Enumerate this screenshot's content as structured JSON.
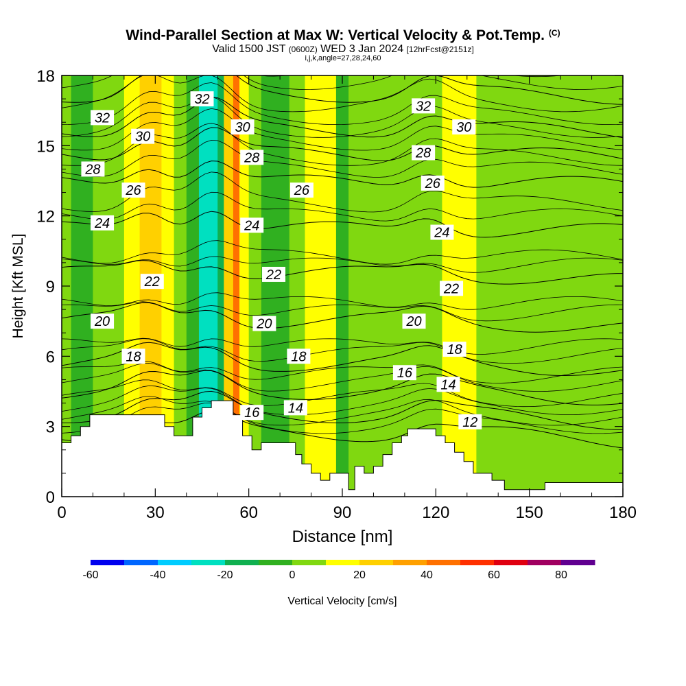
{
  "header": {
    "title": "Wind-Parallel Section at Max W: Vertical Velocity & Pot.Temp.",
    "copyright": "(C)",
    "valid_a": "Valid 1500 JST",
    "valid_z": "(0600Z)",
    "valid_b": "WED 3 Jan 2024",
    "valid_fcst": "[12hrFcst@2151z]",
    "indices": "i,j,k,angle=27,28,24,60"
  },
  "chart_data": {
    "type": "heatmap",
    "title": "Wind-Parallel Section at Max W: Vertical Velocity & Pot.Temp.",
    "xlabel": "Distance [nm]",
    "ylabel": "Height [Kft MSL]",
    "xlim": [
      0,
      180
    ],
    "ylim": [
      0,
      18
    ],
    "xticks": [
      0,
      30,
      60,
      90,
      120,
      150,
      180
    ],
    "yticks": [
      0,
      3,
      6,
      9,
      12,
      15,
      18
    ],
    "grid": false,
    "colorbar": {
      "label": "Vertical Velocity [cm/s]",
      "ticks": [
        -60,
        -40,
        -20,
        0,
        20,
        40,
        60,
        80
      ],
      "bounds": [
        -60,
        90
      ],
      "step": 10,
      "colors": [
        "#0000ee",
        "#0066ff",
        "#00ccff",
        "#00e0c0",
        "#10b050",
        "#30b020",
        "#80d810",
        "#ffff00",
        "#ffd000",
        "#ffa000",
        "#ff7000",
        "#ff3000",
        "#e00010",
        "#a00060",
        "#600090"
      ]
    },
    "velocity_columns": [
      {
        "x": 0,
        "w": 0
      },
      {
        "x": 3,
        "w": 0
      },
      {
        "x": 6,
        "w": -15
      },
      {
        "x": 10,
        "w": -5
      },
      {
        "x": 15,
        "w": 5
      },
      {
        "x": 20,
        "w": 8
      },
      {
        "x": 25,
        "w": 20
      },
      {
        "x": 28,
        "w": 25
      },
      {
        "x": 32,
        "w": 15
      },
      {
        "x": 36,
        "w": 5
      },
      {
        "x": 40,
        "w": -5
      },
      {
        "x": 44,
        "w": -15
      },
      {
        "x": 47,
        "w": -35
      },
      {
        "x": 50,
        "w": -25
      },
      {
        "x": 52,
        "w": -5
      },
      {
        "x": 55,
        "w": 60
      },
      {
        "x": 57,
        "w": 25
      },
      {
        "x": 60,
        "w": 0
      },
      {
        "x": 64,
        "w": 5
      },
      {
        "x": 69,
        "w": -20
      },
      {
        "x": 73,
        "w": 0
      },
      {
        "x": 78,
        "w": 10
      },
      {
        "x": 83,
        "w": 20
      },
      {
        "x": 88,
        "w": 0
      },
      {
        "x": 92,
        "w": -5
      },
      {
        "x": 97,
        "w": 10
      },
      {
        "x": 102,
        "w": 0
      },
      {
        "x": 107,
        "w": 15
      },
      {
        "x": 112,
        "w": -5
      },
      {
        "x": 117,
        "w": 5
      },
      {
        "x": 122,
        "w": -5
      },
      {
        "x": 128,
        "w": 25
      },
      {
        "x": 133,
        "w": 5
      },
      {
        "x": 138,
        "w": 10
      },
      {
        "x": 145,
        "w": 5
      },
      {
        "x": 150,
        "w": 8
      },
      {
        "x": 156,
        "w": 5
      },
      {
        "x": 162,
        "w": 5
      },
      {
        "x": 168,
        "w": 10
      },
      {
        "x": 172,
        "w": 0
      },
      {
        "x": 176,
        "w": 5
      },
      {
        "x": 180,
        "w": 5
      }
    ],
    "terrain_kft": [
      [
        0,
        2.3
      ],
      [
        3,
        2.3
      ],
      [
        3,
        2.6
      ],
      [
        6,
        2.6
      ],
      [
        6,
        3.0
      ],
      [
        9,
        3.0
      ],
      [
        9,
        3.5
      ],
      [
        33,
        3.5
      ],
      [
        33,
        3.0
      ],
      [
        36,
        3.0
      ],
      [
        36,
        2.6
      ],
      [
        42,
        2.6
      ],
      [
        42,
        3.4
      ],
      [
        45,
        3.4
      ],
      [
        45,
        3.8
      ],
      [
        48,
        3.8
      ],
      [
        48,
        4.1
      ],
      [
        55,
        4.1
      ],
      [
        55,
        3.5
      ],
      [
        58,
        3.5
      ],
      [
        58,
        2.6
      ],
      [
        61,
        2.6
      ],
      [
        61,
        2.0
      ],
      [
        64,
        2.0
      ],
      [
        64,
        2.3
      ],
      [
        75,
        2.3
      ],
      [
        75,
        1.8
      ],
      [
        77,
        1.8
      ],
      [
        77,
        1.4
      ],
      [
        80,
        1.4
      ],
      [
        80,
        1.0
      ],
      [
        83,
        1.0
      ],
      [
        83,
        0.7
      ],
      [
        86,
        0.7
      ],
      [
        86,
        1.0
      ],
      [
        92,
        1.0
      ],
      [
        92,
        0.3
      ],
      [
        94,
        0.3
      ],
      [
        94,
        1.3
      ],
      [
        97,
        1.3
      ],
      [
        97,
        1.0
      ],
      [
        100,
        1.0
      ],
      [
        100,
        1.3
      ],
      [
        103,
        1.3
      ],
      [
        103,
        1.8
      ],
      [
        106,
        1.8
      ],
      [
        106,
        2.3
      ],
      [
        109,
        2.3
      ],
      [
        109,
        2.6
      ],
      [
        111,
        2.6
      ],
      [
        111,
        2.9
      ],
      [
        120,
        2.9
      ],
      [
        120,
        2.6
      ],
      [
        123,
        2.6
      ],
      [
        123,
        2.3
      ],
      [
        126,
        2.3
      ],
      [
        126,
        1.9
      ],
      [
        129,
        1.9
      ],
      [
        129,
        1.5
      ],
      [
        132,
        1.5
      ],
      [
        132,
        1.0
      ],
      [
        138,
        1.0
      ],
      [
        138,
        0.7
      ],
      [
        142,
        0.7
      ],
      [
        142,
        0.3
      ],
      [
        155,
        0.3
      ],
      [
        155,
        0.6
      ],
      [
        180,
        0.6
      ]
    ],
    "isentropes": [
      {
        "theta": 12,
        "base": 2.7
      },
      {
        "theta": 14,
        "base": 3.5
      },
      {
        "theta": 16,
        "base": 4.5
      },
      {
        "theta": 18,
        "base": 5.7
      },
      {
        "theta": 20,
        "base": 7.5
      },
      {
        "theta": 22,
        "base": 9.5
      },
      {
        "theta": 24,
        "base": 11.4
      },
      {
        "theta": 26,
        "base": 13.4
      },
      {
        "theta": 28,
        "base": 14.6
      },
      {
        "theta": 30,
        "base": 15.7
      },
      {
        "theta": 32,
        "base": 17.2
      }
    ],
    "contour_labels": [
      {
        "text": "32",
        "x": 13,
        "y": 16.2
      },
      {
        "text": "30",
        "x": 26,
        "y": 15.4
      },
      {
        "text": "28",
        "x": 10,
        "y": 14.0
      },
      {
        "text": "26",
        "x": 23,
        "y": 13.1
      },
      {
        "text": "24",
        "x": 13,
        "y": 11.7
      },
      {
        "text": "22",
        "x": 29,
        "y": 9.2
      },
      {
        "text": "20",
        "x": 13,
        "y": 7.5
      },
      {
        "text": "18",
        "x": 23,
        "y": 6.0
      },
      {
        "text": "32",
        "x": 45,
        "y": 17.0
      },
      {
        "text": "30",
        "x": 58,
        "y": 15.8
      },
      {
        "text": "28",
        "x": 61,
        "y": 14.5
      },
      {
        "text": "26",
        "x": 77,
        "y": 13.1
      },
      {
        "text": "24",
        "x": 61,
        "y": 11.6
      },
      {
        "text": "22",
        "x": 68,
        "y": 9.5
      },
      {
        "text": "20",
        "x": 65,
        "y": 7.4
      },
      {
        "text": "18",
        "x": 76,
        "y": 6.0
      },
      {
        "text": "16",
        "x": 61,
        "y": 3.6
      },
      {
        "text": "14",
        "x": 75,
        "y": 3.8
      },
      {
        "text": "32",
        "x": 116,
        "y": 16.7
      },
      {
        "text": "30",
        "x": 129,
        "y": 15.8
      },
      {
        "text": "28",
        "x": 116,
        "y": 14.7
      },
      {
        "text": "26",
        "x": 119,
        "y": 13.4
      },
      {
        "text": "24",
        "x": 122,
        "y": 11.3
      },
      {
        "text": "22",
        "x": 125,
        "y": 8.9
      },
      {
        "text": "20",
        "x": 113,
        "y": 7.5
      },
      {
        "text": "18",
        "x": 126,
        "y": 6.3
      },
      {
        "text": "16",
        "x": 110,
        "y": 5.3
      },
      {
        "text": "14",
        "x": 124,
        "y": 4.8
      },
      {
        "text": "12",
        "x": 131,
        "y": 3.2
      }
    ]
  }
}
